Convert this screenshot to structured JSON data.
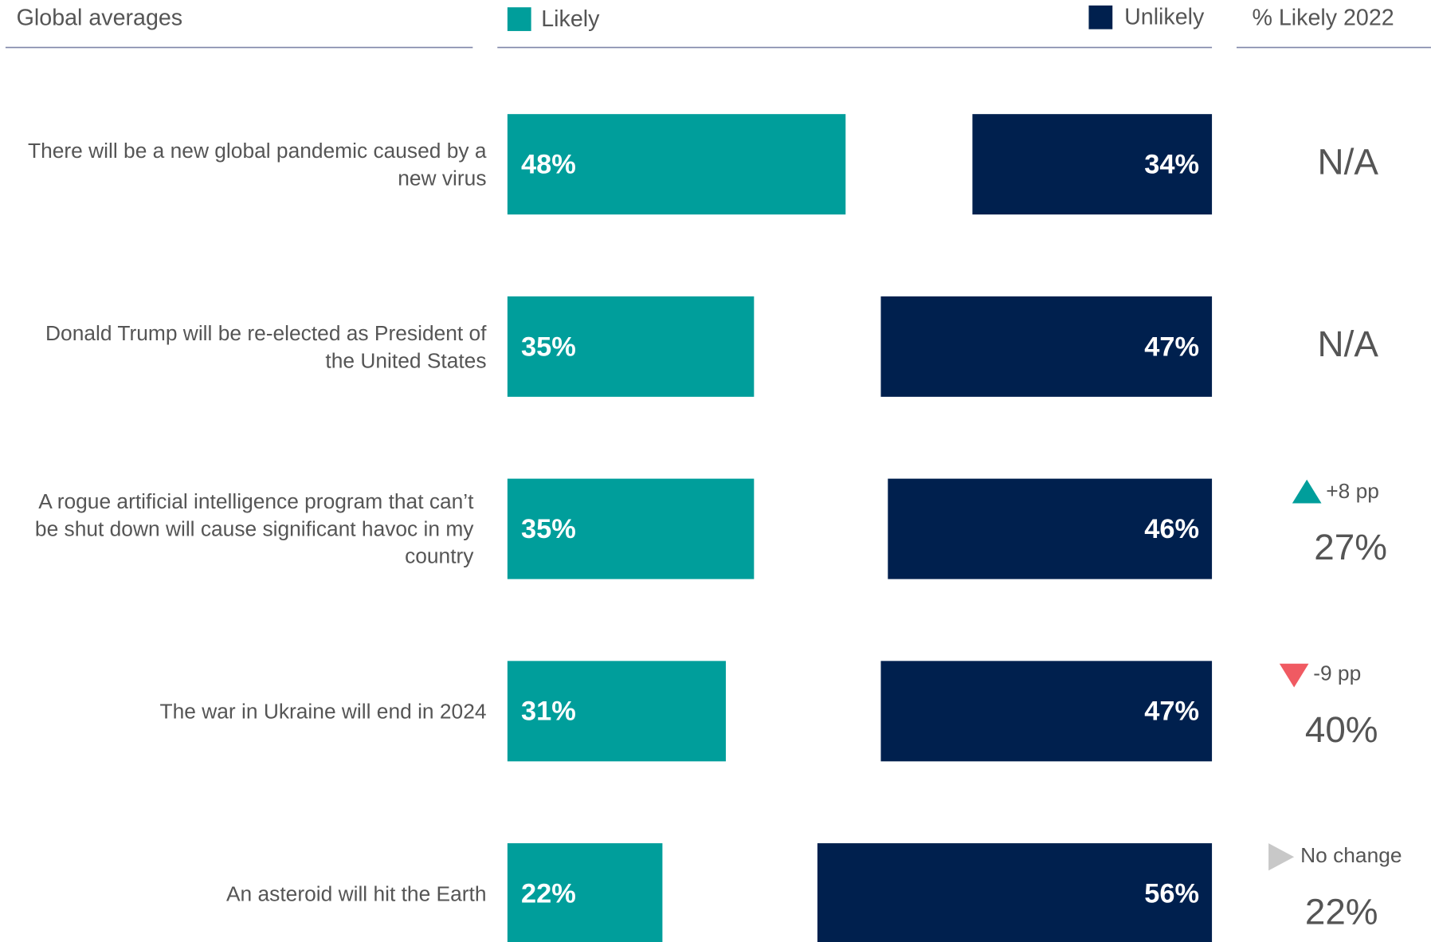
{
  "chart_data": {
    "type": "diverging_bar",
    "title": "Global averages",
    "categories": [
      "There will be a new global pandemic caused by a new virus",
      "Donald Trump will be re-elected as President of the United States",
      "A rogue artificial intelligence program that can’t be shut down will cause significant havoc in my country",
      "The war in Ukraine will end in 2024",
      "An asteroid will hit the Earth"
    ],
    "series": [
      {
        "name": "Likely",
        "color": "#009e9b",
        "values": [
          48,
          35,
          35,
          31,
          22
        ],
        "value_labels": [
          "48%",
          "35%",
          "35%",
          "31%",
          "22%"
        ]
      },
      {
        "name": "Unlikely",
        "color": "#00204e",
        "values": [
          34,
          47,
          46,
          47,
          56
        ],
        "value_labels": [
          "34%",
          "47%",
          "46%",
          "47%",
          "56%"
        ]
      }
    ],
    "comparison": {
      "title": "% Likely 2022",
      "values": [
        null,
        null,
        27,
        40,
        22
      ],
      "value_labels": [
        "N/A",
        "N/A",
        "27%",
        "40%",
        "22%"
      ],
      "change": {
        "values": [
          null,
          null,
          8,
          -9,
          0
        ],
        "value_labels": [
          null,
          null,
          "+8 pp",
          "-9 pp",
          "No change"
        ]
      }
    }
  }
}
